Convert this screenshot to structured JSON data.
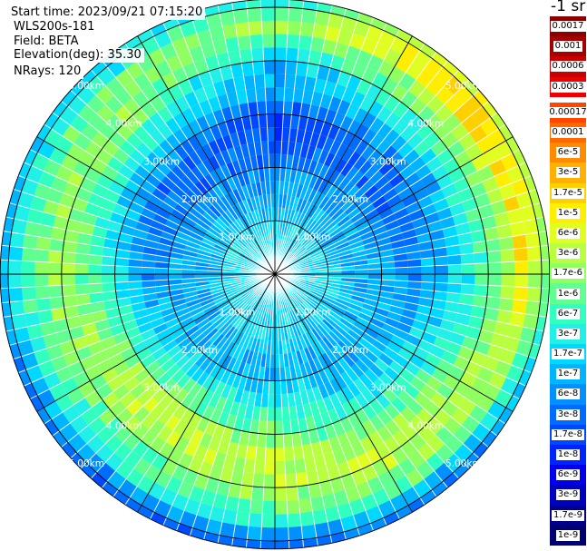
{
  "info": {
    "start_time": "Start time: 2023/09/21 07:15:20",
    "instrument": "WLS200s-181",
    "field": "Field: BETA",
    "elevation": "Elevation(deg): 35.30",
    "nrays": "NRays: 120"
  },
  "colorbar": {
    "title": "-1 sr",
    "upper_levels": [
      {
        "label": "0.0017",
        "color": "#8b0000"
      },
      {
        "label": "0.001",
        "color": "#a40000"
      },
      {
        "label": "0.0006",
        "color": "#c80000"
      },
      {
        "label": "0.0003",
        "color": "#ee0000"
      }
    ],
    "lower_levels": [
      {
        "label": "0.00017",
        "color": "#ff4500"
      },
      {
        "label": "0.0001",
        "color": "#ff6800"
      },
      {
        "label": "6e-5",
        "color": "#ff8c00"
      },
      {
        "label": "3e-5",
        "color": "#ffb000"
      },
      {
        "label": "1.7e-5",
        "color": "#ffd000"
      },
      {
        "label": "1e-5",
        "color": "#ffee00"
      },
      {
        "label": "6e-6",
        "color": "#e0ff20"
      },
      {
        "label": "3e-6",
        "color": "#b8ff40"
      },
      {
        "label": "1.7e-6",
        "color": "#90ff60"
      },
      {
        "label": "1e-6",
        "color": "#60ff90"
      },
      {
        "label": "6e-7",
        "color": "#30ffc0"
      },
      {
        "label": "3e-7",
        "color": "#20f0e8"
      },
      {
        "label": "1.7e-7",
        "color": "#00d8ff"
      },
      {
        "label": "1e-7",
        "color": "#00b4ff"
      },
      {
        "label": "6e-8",
        "color": "#0090ff"
      },
      {
        "label": "3e-8",
        "color": "#006cff"
      },
      {
        "label": "1.7e-8",
        "color": "#0048ff"
      },
      {
        "label": "1e-8",
        "color": "#0024ff"
      },
      {
        "label": "6e-9",
        "color": "#0000ee"
      },
      {
        "label": "3e-9",
        "color": "#0000c0"
      },
      {
        "label": "1.7e-9",
        "color": "#00008b"
      },
      {
        "label": "1e-9",
        "color": "#000070"
      }
    ]
  },
  "chart_data": {
    "type": "heatmap",
    "projection": "polar (PPI scan)",
    "field": "BETA",
    "nrays": 120,
    "range_ring_labels": [
      "1.00km",
      "2.00km",
      "3.00km",
      "4.00km",
      "5.00km"
    ],
    "range_rings_km": [
      1,
      2,
      3,
      4,
      5
    ],
    "max_range_km": 5.15,
    "radial_lines_deg": [
      0,
      30,
      60,
      90,
      120,
      150,
      180,
      210,
      240,
      270,
      300,
      330
    ],
    "range_gates_km": [
      0.25,
      0.5,
      0.75,
      1.0,
      1.25,
      1.5,
      1.75,
      2.0,
      2.25,
      2.5,
      2.75,
      3.0,
      3.25,
      3.5,
      3.75,
      4.0,
      4.25,
      4.5,
      4.75,
      5.0
    ],
    "sector_profiles_deg": [
      0,
      45,
      90,
      135,
      180,
      225,
      270,
      315
    ],
    "beta_profiles_sr": [
      [
        2e-07,
        2e-07,
        1.7e-07,
        1.7e-07,
        1e-07,
        1e-07,
        6e-08,
        6e-08,
        3e-08,
        3e-08,
        1.7e-08,
        1.7e-08,
        3e-08,
        6e-08,
        1e-07,
        1e-07,
        3e-07,
        6e-07,
        1.7e-06,
        1e-06
      ],
      [
        2e-07,
        2e-07,
        1.7e-07,
        1.7e-07,
        1e-07,
        1e-07,
        1e-07,
        6e-08,
        6e-08,
        3e-08,
        3e-08,
        3e-08,
        6e-08,
        1e-07,
        3e-07,
        6e-07,
        1.7e-06,
        3e-06,
        1e-05,
        1.7e-05
      ],
      [
        2e-07,
        2e-07,
        1.7e-07,
        1.7e-07,
        1.7e-07,
        1e-07,
        1e-07,
        1e-07,
        1e-07,
        6e-08,
        6e-08,
        1e-07,
        1e-07,
        1.7e-07,
        3e-07,
        6e-07,
        1e-06,
        3e-06,
        1e-05,
        3e-06
      ],
      [
        2e-07,
        2e-07,
        1.7e-07,
        1.7e-07,
        1.7e-07,
        1e-07,
        1e-07,
        1e-07,
        1e-07,
        1e-07,
        1.7e-07,
        3e-07,
        6e-07,
        1e-06,
        1.7e-06,
        3e-06,
        3e-06,
        1.7e-06,
        1e-06,
        1e-07
      ],
      [
        2e-07,
        2e-07,
        1.7e-07,
        1.7e-07,
        1.7e-07,
        1.7e-07,
        1e-07,
        1e-07,
        1.7e-07,
        3e-07,
        6e-07,
        1e-06,
        1.7e-06,
        3e-06,
        3e-06,
        3e-06,
        1.7e-06,
        1e-06,
        6e-07,
        1e-07
      ],
      [
        2e-07,
        2e-07,
        1.7e-07,
        1.7e-07,
        1.7e-07,
        1e-07,
        1e-07,
        1e-07,
        1.7e-07,
        3e-07,
        6e-07,
        1e-06,
        3e-06,
        3e-06,
        3e-06,
        1.7e-06,
        1e-06,
        6e-07,
        3e-07,
        6e-08
      ],
      [
        2e-07,
        2e-07,
        1.7e-07,
        1.7e-07,
        1e-07,
        1e-07,
        1e-07,
        1e-07,
        6e-08,
        6e-08,
        1e-07,
        1.7e-07,
        3e-07,
        6e-07,
        1e-06,
        1.7e-06,
        1.7e-06,
        1e-06,
        6e-07,
        3e-07
      ],
      [
        2e-07,
        2e-07,
        1.7e-07,
        1.7e-07,
        1e-07,
        1e-07,
        6e-08,
        6e-08,
        3e-08,
        3e-08,
        3e-08,
        6e-08,
        1e-07,
        3e-07,
        6e-07,
        1e-06,
        1.7e-06,
        1.7e-06,
        1e-06,
        3e-07
      ]
    ]
  }
}
